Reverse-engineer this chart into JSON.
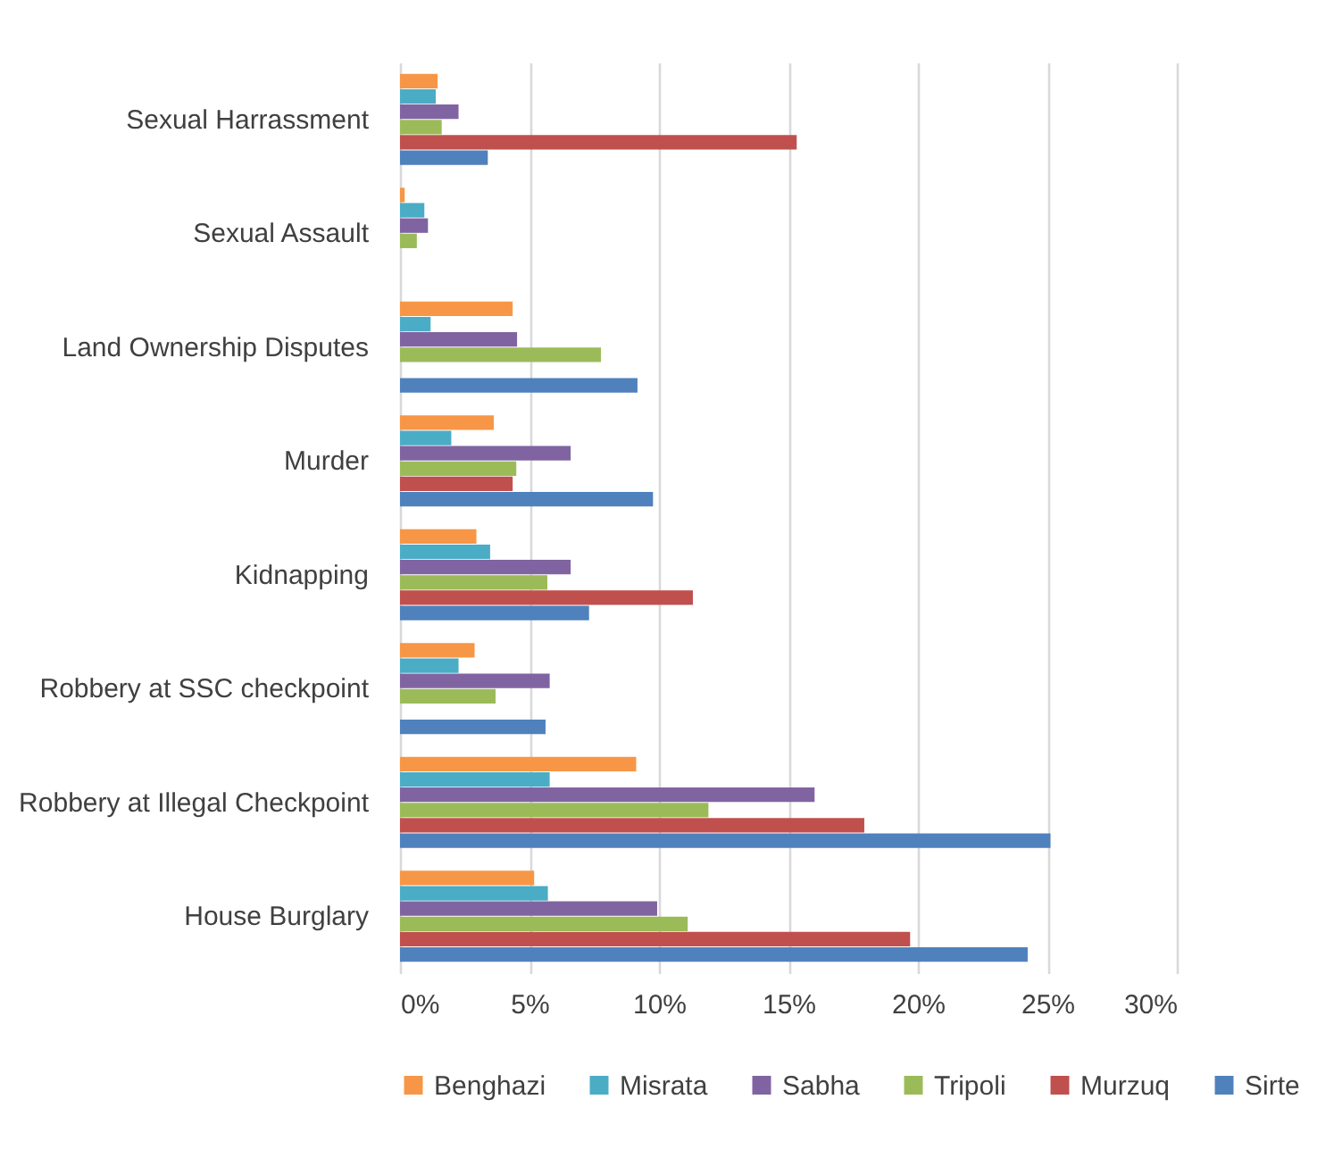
{
  "chart_data": {
    "type": "bar",
    "orientation": "horizontal",
    "categories": [
      "Sexual Harrassment",
      "Sexual Assault",
      "Land Ownership Disputes",
      "Murder",
      "Kidnapping",
      "Robbery at SSC checkpoint",
      "Robbery at Illegal Checkpoint",
      "House Burglary"
    ],
    "series": [
      {
        "name": "Benghazi",
        "color": "#f79646",
        "values": [
          1.45,
          0.18,
          4.35,
          3.62,
          2.95,
          2.88,
          9.12,
          5.18
        ]
      },
      {
        "name": "Misrata",
        "color": "#4bacc6",
        "values": [
          1.38,
          0.94,
          1.18,
          1.98,
          3.48,
          2.26,
          5.78,
          5.71
        ]
      },
      {
        "name": "Sabha",
        "color": "#8064a2",
        "values": [
          2.26,
          1.08,
          4.52,
          6.59,
          6.59,
          5.78,
          16.01,
          9.93
        ]
      },
      {
        "name": "Tripoli",
        "color": "#9bbb59",
        "values": [
          1.61,
          0.65,
          7.76,
          4.49,
          5.69,
          3.69,
          11.91,
          11.11
        ]
      },
      {
        "name": "Murzuq",
        "color": "#c0504d",
        "values": [
          15.32,
          0,
          0,
          4.35,
          11.31,
          0,
          17.93,
          19.7
        ]
      },
      {
        "name": "Sirte",
        "color": "#4f81bd",
        "values": [
          3.39,
          0,
          9.17,
          9.77,
          7.3,
          5.62,
          25.12,
          24.24
        ]
      }
    ],
    "xlim": [
      0,
      30
    ],
    "xticks": [
      {
        "value": 0,
        "label": "0%"
      },
      {
        "value": 5,
        "label": "5%"
      },
      {
        "value": 10,
        "label": "10%"
      },
      {
        "value": 15,
        "label": "15%"
      },
      {
        "value": 20,
        "label": "20%"
      },
      {
        "value": 25,
        "label": "25%"
      },
      {
        "value": 30,
        "label": "30%"
      }
    ],
    "grid": "x",
    "legend": "bottom"
  }
}
